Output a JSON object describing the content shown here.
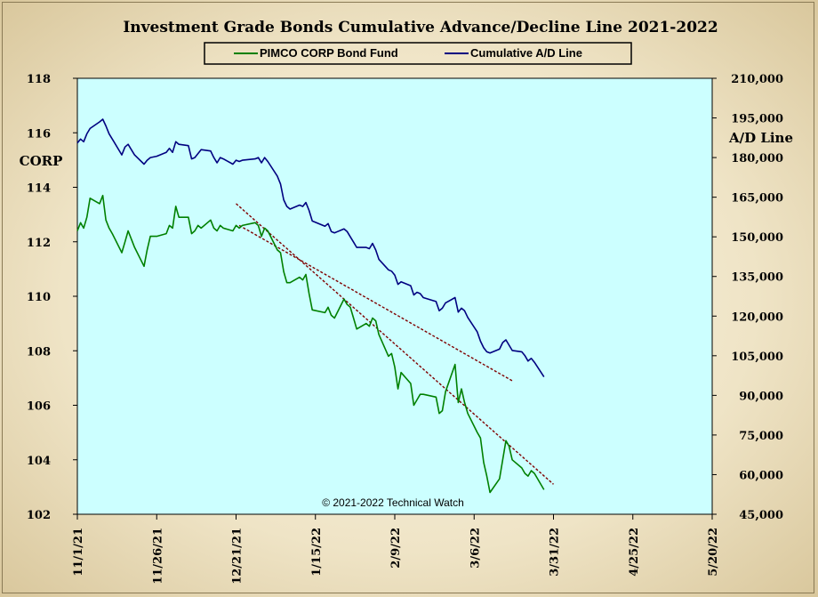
{
  "chart_data": {
    "type": "line",
    "title": "Investment  Grade Bonds Cumulative  Advance/Decline  Line  2021-2022",
    "copyright": "© 2021-2022  Technical  Watch",
    "left_axis": {
      "label": "CORP",
      "ylim": [
        102,
        118
      ],
      "ticks": [
        "102",
        "104",
        "106",
        "108",
        "110",
        "112",
        "114",
        "116",
        "118"
      ]
    },
    "right_axis": {
      "label": "A/D Line",
      "ylim": [
        45000,
        210000
      ],
      "ticks": [
        "45,000",
        "60,000",
        "75,000",
        "90,000",
        "105,000",
        "120,000",
        "135,000",
        "150,000",
        "165,000",
        "180,000",
        "195,000",
        "210,000"
      ]
    },
    "x_axis": {
      "start": "2021-11-01",
      "end": "2022-05-20",
      "ticks": [
        "11/1/21",
        "11/26/21",
        "12/21/21",
        "1/15/22",
        "2/9/22",
        "3/6/22",
        "3/31/22",
        "4/25/22",
        "5/20/22"
      ]
    },
    "legend": {
      "placement": "top-center"
    },
    "colors": {
      "plot_bg": "#ccffff",
      "corp": "#008000",
      "ad": "#000080",
      "trend": "#800000"
    },
    "series": [
      {
        "name": "PIMCO CORP Bond Fund",
        "axis": "left",
        "x": [
          "2021-11-01",
          "2021-11-02",
          "2021-11-03",
          "2021-11-04",
          "2021-11-05",
          "2021-11-08",
          "2021-11-09",
          "2021-11-10",
          "2021-11-11",
          "2021-11-12",
          "2021-11-15",
          "2021-11-16",
          "2021-11-17",
          "2021-11-18",
          "2021-11-19",
          "2021-11-22",
          "2021-11-23",
          "2021-11-24",
          "2021-11-26",
          "2021-11-29",
          "2021-11-30",
          "2021-12-01",
          "2021-12-02",
          "2021-12-03",
          "2021-12-06",
          "2021-12-07",
          "2021-12-08",
          "2021-12-09",
          "2021-12-10",
          "2021-12-13",
          "2021-12-14",
          "2021-12-15",
          "2021-12-16",
          "2021-12-17",
          "2021-12-20",
          "2021-12-21",
          "2021-12-22",
          "2021-12-23",
          "2021-12-27",
          "2021-12-28",
          "2021-12-29",
          "2021-12-30",
          "2021-12-31",
          "2022-01-03",
          "2022-01-04",
          "2022-01-05",
          "2022-01-06",
          "2022-01-07",
          "2022-01-10",
          "2022-01-11",
          "2022-01-12",
          "2022-01-13",
          "2022-01-14",
          "2022-01-18",
          "2022-01-19",
          "2022-01-20",
          "2022-01-21",
          "2022-01-24",
          "2022-01-25",
          "2022-01-26",
          "2022-01-27",
          "2022-01-28",
          "2022-01-31",
          "2022-02-01",
          "2022-02-02",
          "2022-02-03",
          "2022-02-04",
          "2022-02-07",
          "2022-02-08",
          "2022-02-09",
          "2022-02-10",
          "2022-02-11",
          "2022-02-14",
          "2022-02-15",
          "2022-02-16",
          "2022-02-17",
          "2022-02-18",
          "2022-02-22",
          "2022-02-23",
          "2022-02-24",
          "2022-02-25",
          "2022-02-28",
          "2022-03-01",
          "2022-03-02",
          "2022-03-03",
          "2022-03-04",
          "2022-03-07",
          "2022-03-08",
          "2022-03-09",
          "2022-03-10",
          "2022-03-11",
          "2022-03-14",
          "2022-03-15",
          "2022-03-16",
          "2022-03-17",
          "2022-03-18",
          "2022-03-21",
          "2022-03-22",
          "2022-03-23",
          "2022-03-24",
          "2022-03-25",
          "2022-03-28"
        ],
        "values": [
          112.4,
          112.7,
          112.5,
          112.9,
          113.6,
          113.4,
          113.7,
          112.8,
          112.5,
          112.3,
          111.6,
          112.0,
          112.4,
          112.1,
          111.8,
          111.1,
          111.7,
          112.2,
          112.2,
          112.3,
          112.6,
          112.5,
          113.3,
          112.9,
          112.9,
          112.3,
          112.4,
          112.6,
          112.5,
          112.8,
          112.5,
          112.4,
          112.6,
          112.5,
          112.4,
          112.6,
          112.5,
          112.6,
          112.7,
          112.6,
          112.2,
          112.5,
          112.4,
          111.7,
          111.6,
          110.9,
          110.5,
          110.5,
          110.7,
          110.6,
          110.8,
          110.1,
          109.5,
          109.4,
          109.6,
          109.3,
          109.2,
          109.9,
          109.7,
          109.6,
          109.2,
          108.8,
          109.0,
          108.9,
          109.2,
          109.1,
          108.6,
          107.8,
          107.9,
          107.4,
          106.6,
          107.2,
          106.8,
          106.0,
          106.2,
          106.4,
          106.4,
          106.3,
          105.7,
          105.8,
          106.5,
          107.5,
          106.1,
          106.6,
          106.1,
          105.7,
          105.0,
          104.8,
          103.9,
          103.4,
          102.8,
          103.3,
          104.0,
          104.7,
          104.5,
          104.0,
          103.7,
          103.5,
          103.4,
          103.6,
          103.5,
          102.9
        ]
      },
      {
        "name": "Cumulative A/D Line",
        "axis": "right",
        "values": [
          185500,
          187000,
          186000,
          189000,
          191000,
          193500,
          194500,
          192000,
          189000,
          187000,
          181000,
          184000,
          185000,
          183000,
          181000,
          177500,
          179000,
          180000,
          180500,
          182000,
          183500,
          182000,
          186000,
          185000,
          184500,
          179500,
          180000,
          181500,
          183000,
          182500,
          180000,
          178000,
          180000,
          179500,
          177500,
          179000,
          178500,
          179000,
          179500,
          180000,
          178000,
          180000,
          178500,
          173000,
          170000,
          164000,
          161500,
          160500,
          162000,
          161500,
          163000,
          160000,
          156000,
          154000,
          155000,
          152000,
          151500,
          153000,
          152000,
          150000,
          148000,
          146000,
          146000,
          145500,
          147500,
          145000,
          141500,
          137500,
          137000,
          135500,
          132000,
          133000,
          131500,
          128000,
          129000,
          128500,
          127000,
          125500,
          122000,
          123000,
          125000,
          127000,
          121500,
          123000,
          122000,
          119500,
          114000,
          110500,
          108000,
          106500,
          106000,
          107500,
          110000,
          111000,
          109000,
          107000,
          106500,
          105000,
          103000,
          104000,
          102500,
          97000
        ]
      }
    ],
    "trendlines": [
      {
        "axis": "left",
        "from": [
          "2021-12-22",
          112.6
        ],
        "to": [
          "2022-03-18",
          106.9
        ]
      },
      {
        "axis": "left",
        "from": [
          "2021-12-21",
          113.4
        ],
        "to": [
          "2022-03-31",
          103.1
        ]
      }
    ]
  }
}
